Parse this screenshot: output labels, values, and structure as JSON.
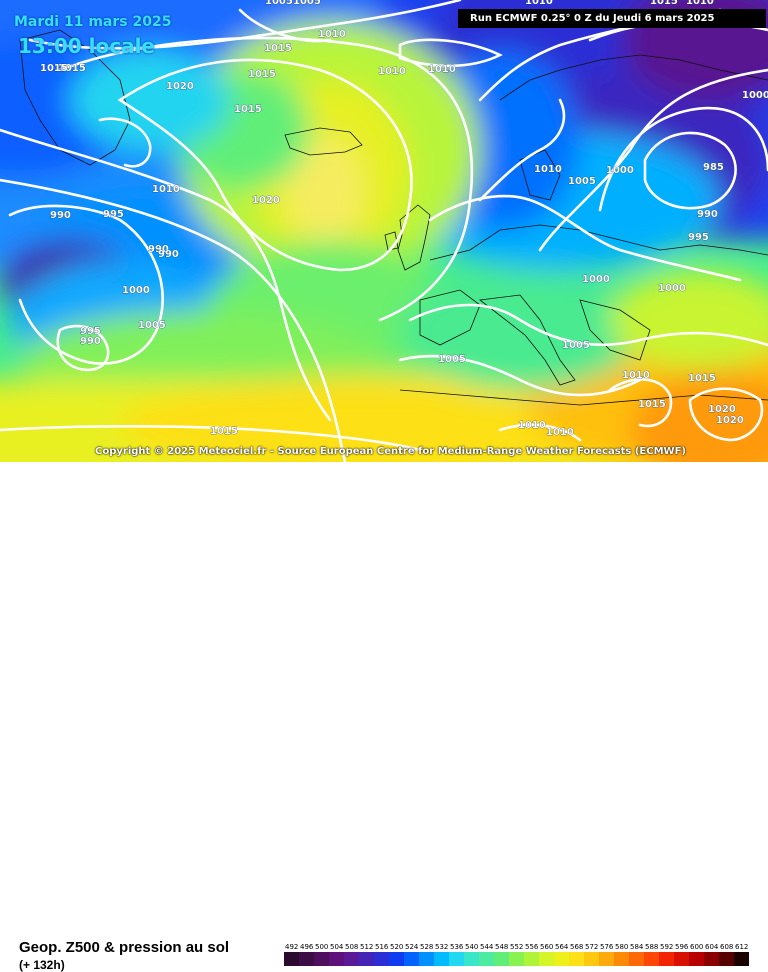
{
  "header": {
    "date_label": "Mardi 11 mars 2025",
    "time_label": "13:00 locale",
    "run_info": "Run ECMWF 0.25° 0 Z du Jeudi 6 mars 2025"
  },
  "map": {
    "copyright": "Copyright © 2025 Meteociel.fr - Source European Centre for Medium-Range Weather Forecasts (ECMWF)",
    "isobar_labels": [
      "1005",
      "1005",
      "1010",
      "1015",
      "1015",
      "1010",
      "1010",
      "1015",
      "1020",
      "1015",
      "1010",
      "1010",
      "1010",
      "1005",
      "1000",
      "985",
      "1000",
      "990",
      "995",
      "990",
      "995",
      "1020",
      "990",
      "990",
      "1000",
      "1005",
      "995",
      "990",
      "1000",
      "1000",
      "1005",
      "1005",
      "1010",
      "1015",
      "1015",
      "1020",
      "1020",
      "1010",
      "1010",
      "1015",
      "1010",
      "1015",
      "1015"
    ]
  },
  "footer": {
    "title": "Geop. Z500 & pression au sol",
    "lead_time": "(+ 132h)"
  },
  "legend": {
    "ticks": [
      "492",
      "496",
      "500",
      "504",
      "508",
      "512",
      "516",
      "520",
      "524",
      "528",
      "532",
      "536",
      "540",
      "544",
      "548",
      "552",
      "556",
      "560",
      "564",
      "568",
      "572",
      "576",
      "580",
      "584",
      "588",
      "592",
      "596",
      "600",
      "604",
      "608",
      "612"
    ],
    "colors": [
      "#2b0a2f",
      "#3b0d44",
      "#4e0f5c",
      "#5e117a",
      "#5a1a98",
      "#4424b6",
      "#2a2ed4",
      "#0f3cf0",
      "#0062ff",
      "#0090ff",
      "#00bcff",
      "#22d8f0",
      "#3ae6c8",
      "#4ceba0",
      "#60ee78",
      "#88f250",
      "#b0f43a",
      "#d4f628",
      "#eef01c",
      "#fde018",
      "#ffc810",
      "#ffaa0c",
      "#ff8a08",
      "#ff6806",
      "#ff4604",
      "#f22402",
      "#d81000",
      "#b80000",
      "#8a0000",
      "#560000",
      "#1a0000"
    ]
  }
}
